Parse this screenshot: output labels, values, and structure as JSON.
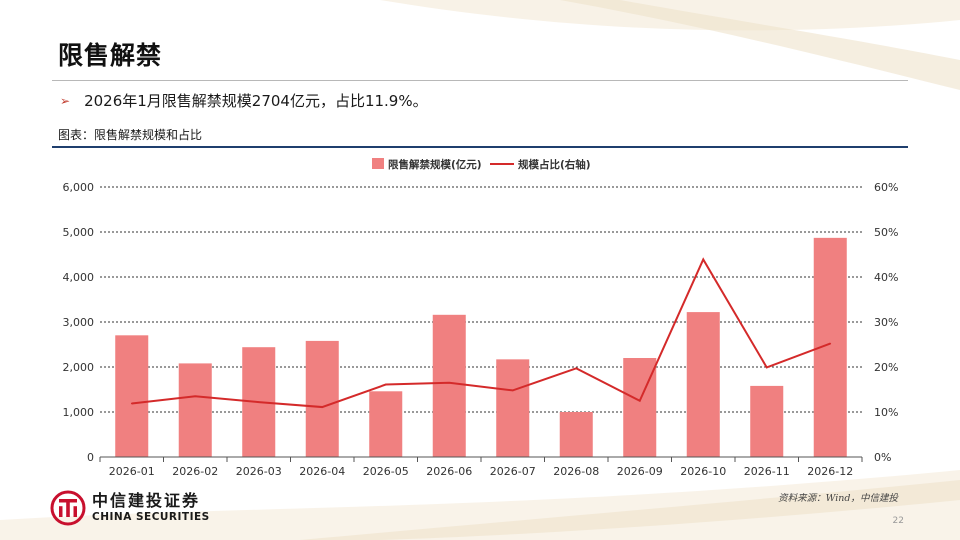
{
  "slide": {
    "title": "限售解禁",
    "bullet_marker": "➢",
    "bullet": "2026年1月限售解禁规模2704亿元，占比11.9%。",
    "caption": "图表：限售解禁规模和占比",
    "source": "资料来源：Wind，中信建投",
    "page_number": "22"
  },
  "brand": {
    "cn": "中信建投证券",
    "en": "CHINA SECURITIES",
    "accent": "#c8102e"
  },
  "chart_data": {
    "type": "bar",
    "categories": [
      "2026-01",
      "2026-02",
      "2026-03",
      "2026-04",
      "2026-05",
      "2026-06",
      "2026-07",
      "2026-08",
      "2026-09",
      "2026-10",
      "2026-11",
      "2026-12"
    ],
    "series": [
      {
        "name": "限售解禁规模(亿元)",
        "kind": "bar",
        "axis": "left",
        "color": "#f08080",
        "values": [
          2704,
          2080,
          2440,
          2580,
          1460,
          3160,
          2170,
          1000,
          2200,
          3220,
          1580,
          4870
        ]
      },
      {
        "name": "规模占比(右轴)",
        "kind": "line",
        "axis": "right",
        "color": "#d42a2a",
        "values": [
          11.9,
          13.5,
          12.2,
          11.1,
          16.1,
          16.5,
          14.8,
          19.7,
          12.5,
          43.9,
          19.9,
          25.2
        ]
      }
    ],
    "y_left": {
      "min": 0,
      "max": 6000,
      "ticks": [
        "0",
        "1,000",
        "2,000",
        "3,000",
        "4,000",
        "5,000",
        "6,000"
      ]
    },
    "y_right": {
      "min": 0,
      "max": 60,
      "ticks": [
        "0%",
        "10%",
        "20%",
        "30%",
        "40%",
        "50%",
        "60%"
      ]
    },
    "grid": true,
    "legend_position": "top-center"
  }
}
